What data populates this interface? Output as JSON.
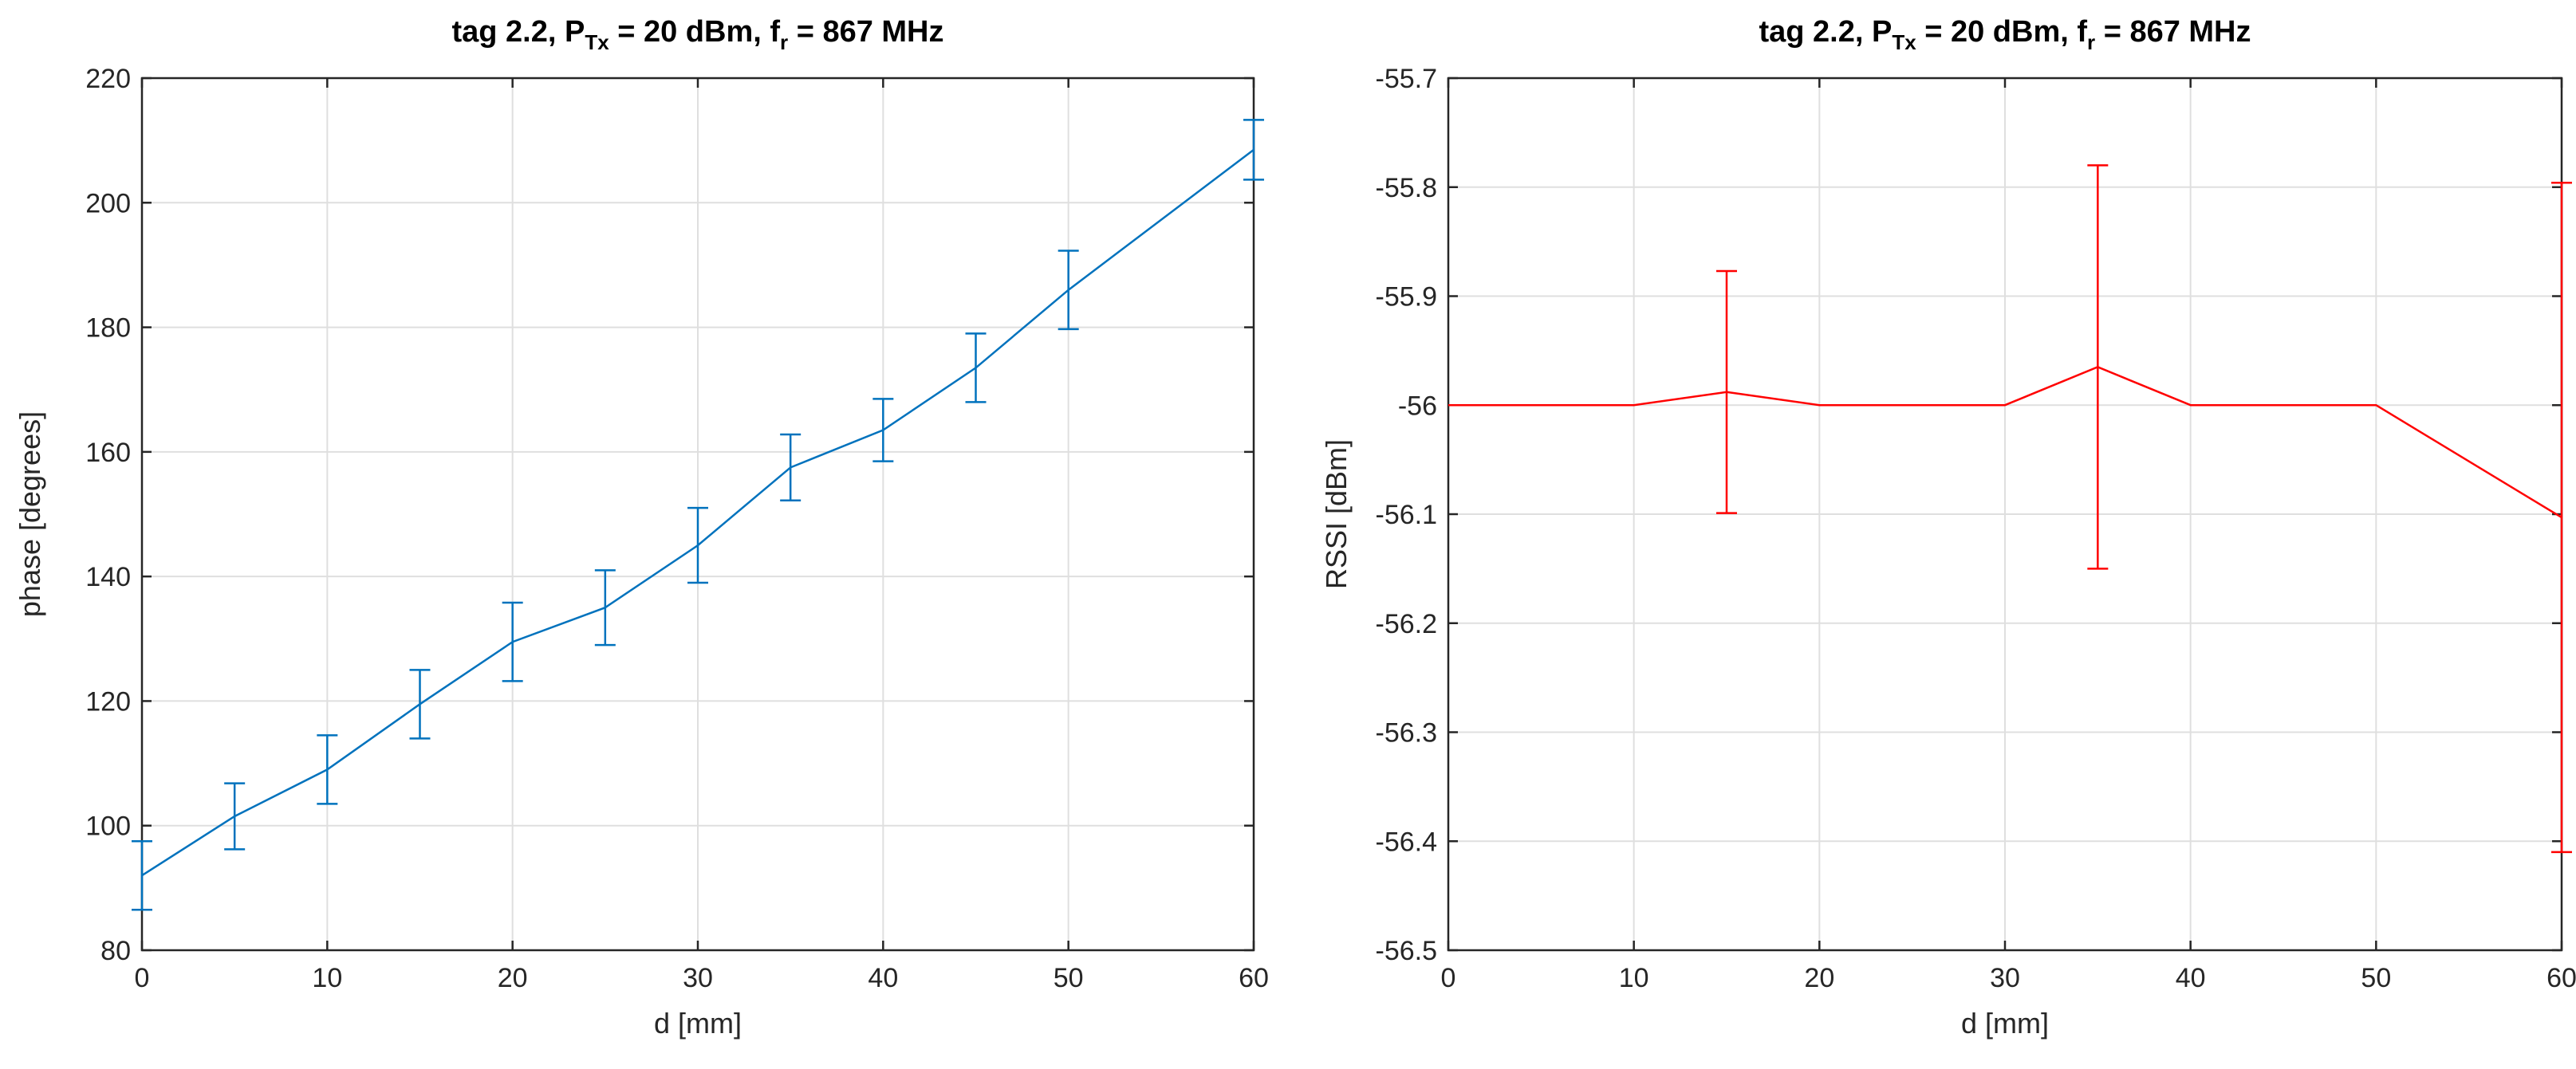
{
  "chart_data": [
    {
      "type": "line",
      "title": {
        "prefix": "tag 2.2, P",
        "sub1": "Tx",
        "mid": " = 20 dBm, f",
        "sub2": "r",
        "suffix": " = 867 MHz"
      },
      "xlabel": "d [mm]",
      "ylabel": "phase [degrees]",
      "xlim": [
        0,
        60
      ],
      "ylim": [
        80,
        220
      ],
      "xticks": [
        0,
        10,
        20,
        30,
        40,
        50,
        60
      ],
      "yticks": [
        80,
        100,
        120,
        140,
        160,
        180,
        200,
        220
      ],
      "grid": true,
      "color": "#0072BD",
      "series": [
        {
          "name": "phase",
          "x": [
            0,
            5,
            10,
            15,
            20,
            25,
            30,
            35,
            40,
            45,
            50,
            60
          ],
          "y": [
            92,
            101.5,
            109,
            119.5,
            129.5,
            135,
            145,
            157.5,
            163.5,
            173.5,
            186,
            208.5
          ],
          "err": [
            5.5,
            5.3,
            5.5,
            5.5,
            6.3,
            6.0,
            6.0,
            5.3,
            5.0,
            5.5,
            6.3,
            4.8
          ]
        }
      ]
    },
    {
      "type": "line",
      "title": {
        "prefix": "tag 2.2, P",
        "sub1": "Tx",
        "mid": " = 20 dBm, f",
        "sub2": "r",
        "suffix": " = 867 MHz"
      },
      "xlabel": "d [mm]",
      "ylabel": "RSSI [dBm]",
      "xlim": [
        0,
        60
      ],
      "ylim": [
        -56.5,
        -55.7
      ],
      "xticks": [
        0,
        10,
        20,
        30,
        40,
        50,
        60
      ],
      "yticks": [
        -56.5,
        -56.4,
        -56.3,
        -56.2,
        -56.1,
        -56,
        -55.9,
        -55.8,
        -55.7
      ],
      "grid": true,
      "color": "#FF0000",
      "series": [
        {
          "name": "RSSI",
          "x": [
            0,
            10,
            15,
            20,
            30,
            35,
            40,
            50,
            60
          ],
          "y": [
            -56,
            -56,
            -55.988,
            -56,
            -56,
            -55.965,
            -56,
            -56,
            -56.103
          ],
          "err": [
            0,
            0,
            0.111,
            0,
            0,
            0.185,
            0,
            0,
            0.307
          ]
        }
      ]
    }
  ]
}
